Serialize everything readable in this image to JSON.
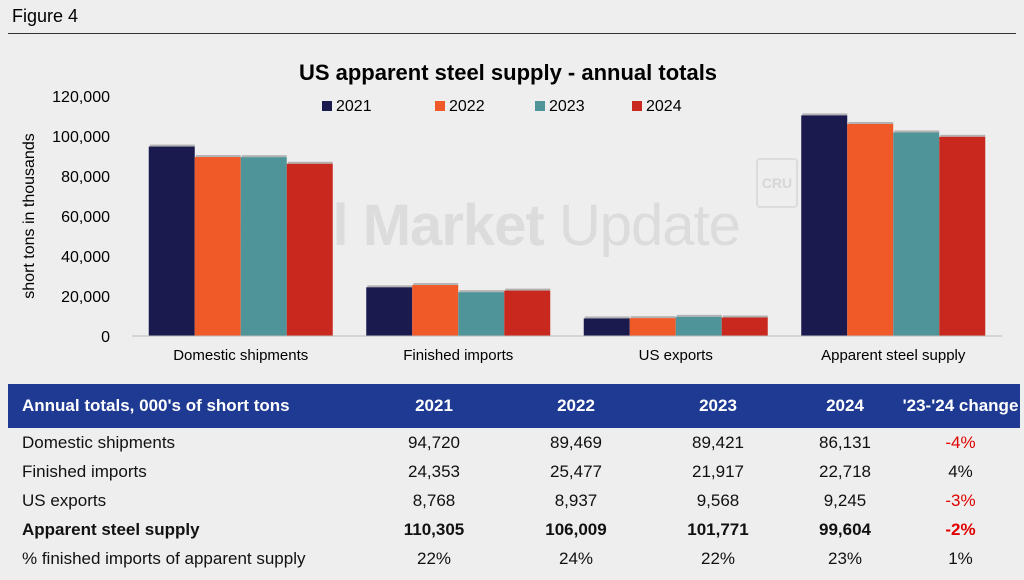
{
  "figure_label": "Figure 4",
  "colors": {
    "2021": "#1a1a4e",
    "2022": "#f05a28",
    "2023": "#4e9499",
    "2024": "#c8281e",
    "header": "#1f3a93",
    "negative": "#e00000"
  },
  "watermark": {
    "brand_bold": "Steel Market",
    "brand_thin": "Update",
    "cru": "CRU"
  },
  "chart_data": {
    "type": "bar",
    "title": "US apparent steel supply - annual totals",
    "xlabel": "",
    "ylabel": "short tons in thousands",
    "ylim": [
      0,
      120000
    ],
    "yticks": [
      "0",
      "20,000",
      "40,000",
      "60,000",
      "80,000",
      "100,000",
      "120,000"
    ],
    "ytick_values": [
      0,
      20000,
      40000,
      60000,
      80000,
      100000,
      120000
    ],
    "legend_position": "top",
    "grid": false,
    "categories": [
      "Domestic shipments",
      "Finished imports",
      "US exports",
      "Apparent steel supply"
    ],
    "series": [
      {
        "name": "2021",
        "values": [
          94720,
          24353,
          8768,
          110305
        ]
      },
      {
        "name": "2022",
        "values": [
          89469,
          25477,
          8937,
          106009
        ]
      },
      {
        "name": "2023",
        "values": [
          89421,
          21917,
          9568,
          101771
        ]
      },
      {
        "name": "2024",
        "values": [
          86131,
          22718,
          9245,
          99604
        ]
      }
    ]
  },
  "table": {
    "headers": [
      "Annual totals, 000's of short tons",
      "2021",
      "2022",
      "2023",
      "2024",
      "'23-'24 change"
    ],
    "rows": [
      {
        "label": "Domestic shipments",
        "cells": [
          "94,720",
          "89,469",
          "89,421",
          "86,131"
        ],
        "change": "-4%",
        "negative": true,
        "bold": false
      },
      {
        "label": "Finished imports",
        "cells": [
          "24,353",
          "25,477",
          "21,917",
          "22,718"
        ],
        "change": "4%",
        "negative": false,
        "bold": false
      },
      {
        "label": "US exports",
        "cells": [
          "8,768",
          "8,937",
          "9,568",
          "9,245"
        ],
        "change": "-3%",
        "negative": true,
        "bold": false
      },
      {
        "label": "Apparent steel supply",
        "cells": [
          "110,305",
          "106,009",
          "101,771",
          "99,604"
        ],
        "change": "-2%",
        "negative": true,
        "bold": true
      },
      {
        "label": "% finished imports of apparent supply",
        "cells": [
          "22%",
          "24%",
          "22%",
          "23%"
        ],
        "change": "1%",
        "negative": false,
        "bold": false
      }
    ]
  }
}
